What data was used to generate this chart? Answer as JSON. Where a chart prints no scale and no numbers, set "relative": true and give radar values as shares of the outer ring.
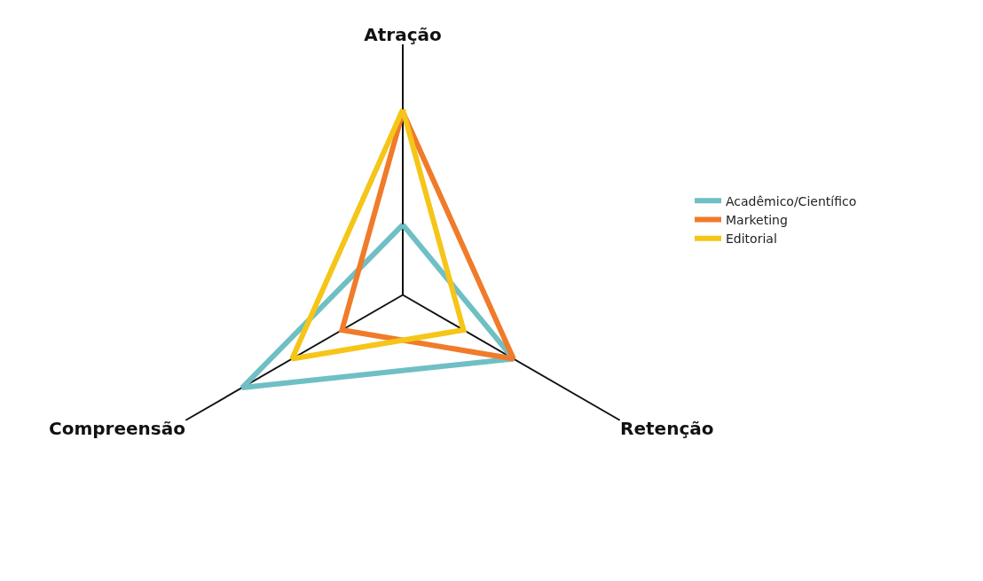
{
  "chart_data": {
    "type": "radar",
    "categories": [
      "Atração",
      "Retenção",
      "Compreensão"
    ],
    "relative": true,
    "legend": "right",
    "series": [
      {
        "name": "Acadêmico/Científico",
        "color": "#6fbfc4",
        "values": [
          0.28,
          0.51,
          0.74
        ]
      },
      {
        "name": "Marketing",
        "color": "#f07b2a",
        "values": [
          0.73,
          0.51,
          0.28
        ]
      },
      {
        "name": "Editorial",
        "color": "#f5c518",
        "values": [
          0.74,
          0.28,
          0.51
        ]
      }
    ]
  }
}
